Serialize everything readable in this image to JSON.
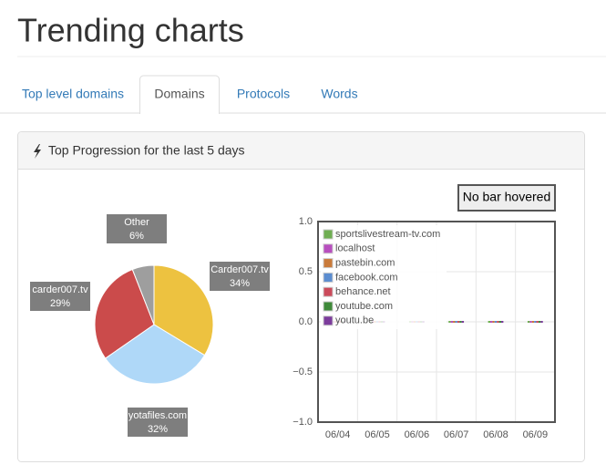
{
  "header": {
    "title": "Trending charts"
  },
  "tabs": [
    "Top level domains",
    "Domains",
    "Protocols",
    "Words"
  ],
  "active_tab": 1,
  "panel": {
    "title": "Top Progression for the last 5 days"
  },
  "hover_box": "No bar hovered",
  "chart_data": [
    {
      "type": "pie",
      "categories": [
        "Carder007.tv",
        "yotafiles.com",
        "carder007.tv",
        "Other"
      ],
      "values": [
        34,
        32,
        29,
        6
      ],
      "value_labels": [
        "34%",
        "32%",
        "29%",
        "6%"
      ],
      "colors": [
        "#edc240",
        "#afd8f8",
        "#cb4b4b",
        "#9e9e9e"
      ]
    },
    {
      "type": "bar",
      "categories": [
        "06/04",
        "06/05",
        "06/06",
        "06/07",
        "06/08",
        "06/09"
      ],
      "series": [
        {
          "name": "sportslivestream-tv.com",
          "color": "#6fae52",
          "values": [
            0,
            0,
            0,
            0,
            0,
            0
          ]
        },
        {
          "name": "localhost",
          "color": "#b84fbf",
          "values": [
            0,
            0,
            0,
            0,
            0,
            0
          ]
        },
        {
          "name": "pastebin.com",
          "color": "#c97a3a",
          "values": [
            0,
            0,
            0,
            0,
            0,
            0
          ]
        },
        {
          "name": "facebook.com",
          "color": "#5b8dd0",
          "values": [
            0,
            0,
            0,
            0,
            0,
            0
          ]
        },
        {
          "name": "behance.net",
          "color": "#cb4b5b",
          "values": [
            0,
            0,
            0,
            0,
            0,
            0
          ]
        },
        {
          "name": "youtube.com",
          "color": "#3f8a3a",
          "values": [
            0,
            0,
            0,
            0,
            0,
            0
          ]
        },
        {
          "name": "youtu.be",
          "color": "#7c3c9c",
          "values": [
            0,
            0,
            0,
            0,
            0,
            0
          ]
        }
      ],
      "ylim": [
        -1,
        1
      ],
      "yticks": [
        {
          "value": -1,
          "label": "−1.0"
        },
        {
          "value": -0.5,
          "label": "−0.5"
        },
        {
          "value": 0,
          "label": "0.0"
        },
        {
          "value": 0.5,
          "label": "0.5"
        },
        {
          "value": 1,
          "label": "1.0"
        }
      ],
      "grid": true
    }
  ]
}
